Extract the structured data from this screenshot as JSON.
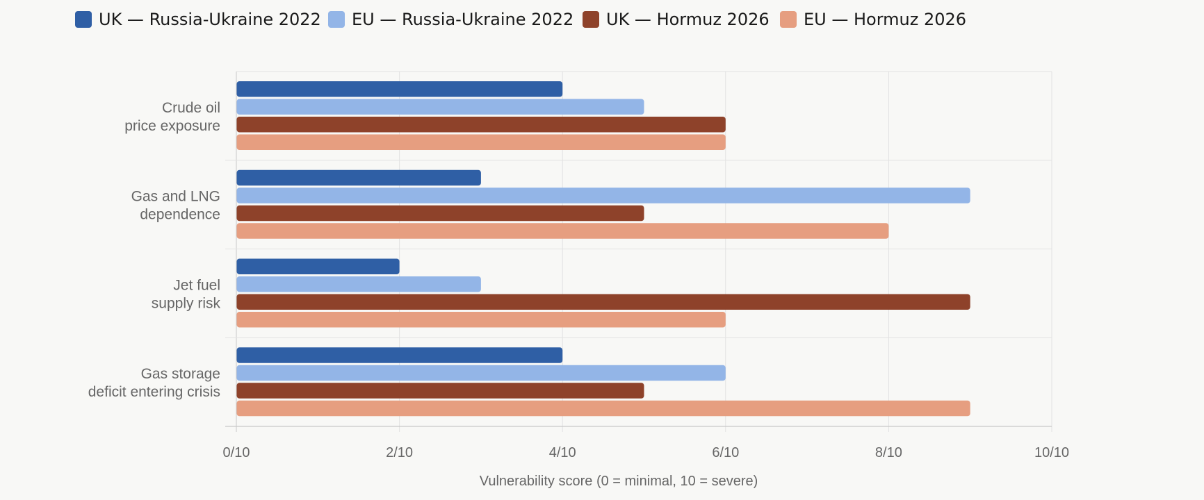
{
  "chart_data": {
    "type": "bar",
    "orientation": "horizontal",
    "categories": [
      [
        "Crude oil",
        "price exposure"
      ],
      [
        "Gas and LNG",
        "dependence"
      ],
      [
        "Jet fuel",
        "supply risk"
      ],
      [
        "Gas storage",
        "deficit entering crisis"
      ]
    ],
    "series": [
      {
        "name": "UK — Russia-Ukraine 2022",
        "color": "#2f5fa5",
        "values": [
          4,
          3,
          2,
          4
        ]
      },
      {
        "name": "EU — Russia-Ukraine 2022",
        "color": "#93b5e7",
        "values": [
          5,
          9,
          3,
          6
        ]
      },
      {
        "name": "UK — Hormuz 2026",
        "color": "#8e422a",
        "values": [
          6,
          5,
          9,
          5
        ]
      },
      {
        "name": "EU — Hormuz 2026",
        "color": "#e69e80",
        "values": [
          6,
          8,
          6,
          9
        ]
      }
    ],
    "xlim": [
      0,
      10
    ],
    "xticks": [
      "0/10",
      "2/10",
      "4/10",
      "6/10",
      "8/10",
      "10/10"
    ],
    "xtick_values": [
      0,
      2,
      4,
      6,
      8,
      10
    ],
    "xlabel": "Vulnerability score (0 = minimal, 10 = severe)",
    "grid": true,
    "legend_position": "top-left"
  }
}
